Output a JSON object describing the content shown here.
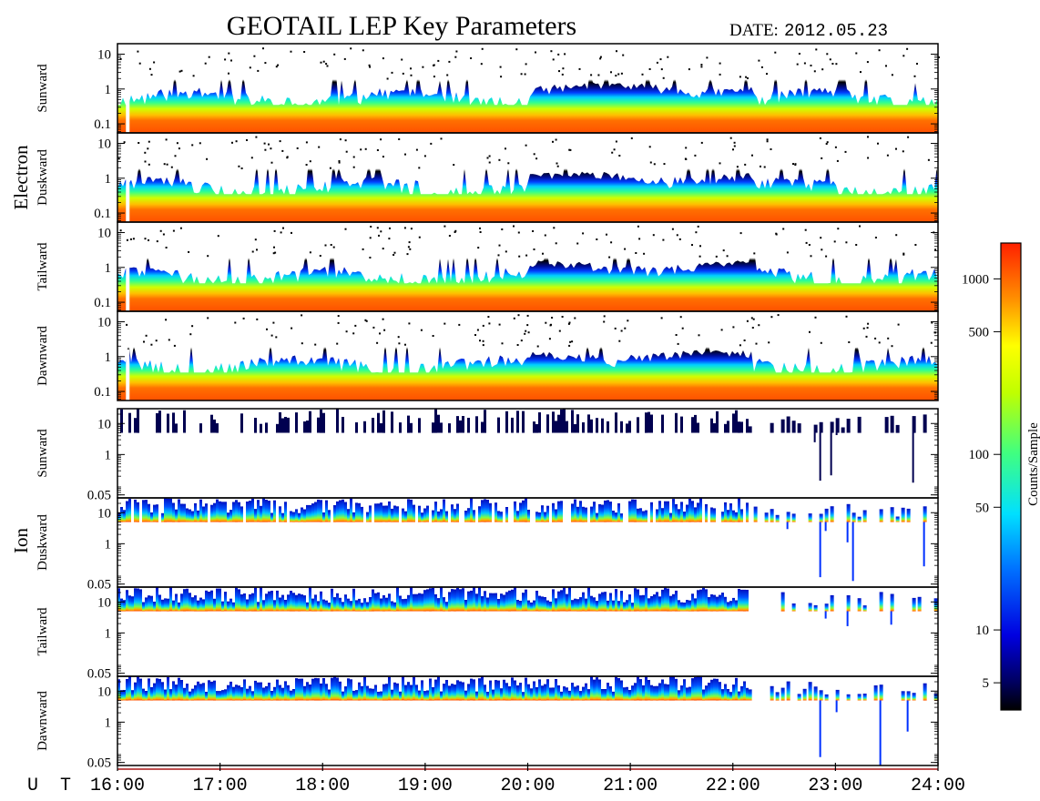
{
  "title": "GEOTAIL LEP Key Parameters",
  "date_label": "DATE:",
  "date_value": "2012.05.23",
  "ut_label": "U T",
  "colorbar": {
    "label": "Counts/Sample",
    "ticks": [
      "1000",
      "500",
      "100",
      "50",
      "10",
      "5"
    ],
    "tick_values": [
      1000,
      500,
      100,
      50,
      10,
      5
    ],
    "range": [
      3.5,
      1600
    ],
    "scale": "log"
  },
  "chart_data": {
    "type": "heatmap",
    "x": {
      "unit": "UT",
      "ticks": [
        "16:00",
        "17:00",
        "18:00",
        "19:00",
        "20:00",
        "21:00",
        "22:00",
        "23:00",
        "24:00"
      ],
      "range": [
        16,
        24
      ]
    },
    "groups": [
      {
        "name": "Electron",
        "panels": [
          {
            "name": "Sunward",
            "yticks": [
              "10",
              "1",
              "0.1"
            ],
            "ytick_values": [
              10,
              1,
              0.1
            ],
            "yrange": [
              0.055,
              20
            ],
            "yscale": "log"
          },
          {
            "name": "Duskward",
            "yticks": [
              "10",
              "1",
              "0.1"
            ],
            "ytick_values": [
              10,
              1,
              0.1
            ],
            "yrange": [
              0.055,
              20
            ],
            "yscale": "log"
          },
          {
            "name": "Tailward",
            "yticks": [
              "10",
              "1",
              "0.1"
            ],
            "ytick_values": [
              10,
              1,
              0.1
            ],
            "yrange": [
              0.055,
              20
            ],
            "yscale": "log"
          },
          {
            "name": "Dawnward",
            "yticks": [
              "10",
              "1",
              "0.1"
            ],
            "ytick_values": [
              10,
              1,
              0.1
            ],
            "yrange": [
              0.055,
              20
            ],
            "yscale": "log"
          }
        ]
      },
      {
        "name": "Ion",
        "panels": [
          {
            "name": "Sunward",
            "yticks": [
              "10",
              "1",
              "0.05"
            ],
            "ytick_values": [
              10,
              1,
              0.05
            ],
            "yrange": [
              0.04,
              30
            ],
            "yscale": "log"
          },
          {
            "name": "Duskward",
            "yticks": [
              "10",
              "1",
              "0.05"
            ],
            "ytick_values": [
              10,
              1,
              0.05
            ],
            "yrange": [
              0.04,
              30
            ],
            "yscale": "log"
          },
          {
            "name": "Tailward",
            "yticks": [
              "10",
              "1",
              "0.05"
            ],
            "ytick_values": [
              10,
              1,
              0.05
            ],
            "yrange": [
              0.04,
              30
            ],
            "yscale": "log"
          },
          {
            "name": "Dawnward",
            "yticks": [
              "10",
              "1",
              "0.05"
            ],
            "ytick_values": [
              10,
              1,
              0.05
            ],
            "yrange": [
              0.04,
              30
            ],
            "yscale": "log"
          }
        ]
      }
    ],
    "features": {
      "electron_data_gap_ut": 16.1,
      "ion_low_energy_cutoff": 5,
      "ion_dropout_start_ut": 22.15
    }
  }
}
